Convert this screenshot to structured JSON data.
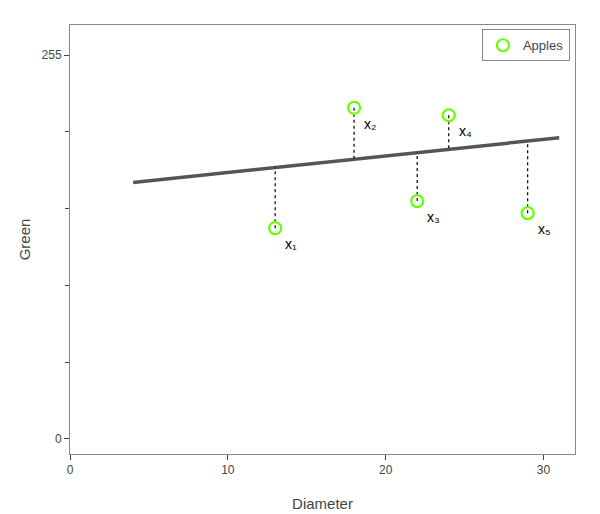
{
  "chart_data": {
    "type": "scatter",
    "xlabel": "Diameter",
    "ylabel": "Green",
    "xlim": [
      0,
      32
    ],
    "ylim": [
      -10,
      275
    ],
    "xticks": [
      0,
      10,
      20,
      30
    ],
    "yticks": [
      0,
      255
    ],
    "yticks_minor": [
      51,
      102,
      153,
      204
    ],
    "grid": false,
    "legend": "upper right",
    "series": [
      {
        "name": "Apples",
        "type": "scatter",
        "marker": "circle-open",
        "color": "#66ff00",
        "x": [
          13,
          18,
          22,
          24,
          29
        ],
        "values": [
          140,
          220,
          158,
          215,
          150
        ],
        "fitted": [
          180.3,
          185.8,
          190.2,
          192.4,
          197.9
        ],
        "labels": [
          "x₁",
          "x₂",
          "x₃",
          "x₄",
          "x₅"
        ]
      },
      {
        "type": "line",
        "line_style": "solid",
        "color": "#555555",
        "x": [
          4,
          31
        ],
        "values": [
          170.4,
          200.1
        ]
      }
    ]
  }
}
